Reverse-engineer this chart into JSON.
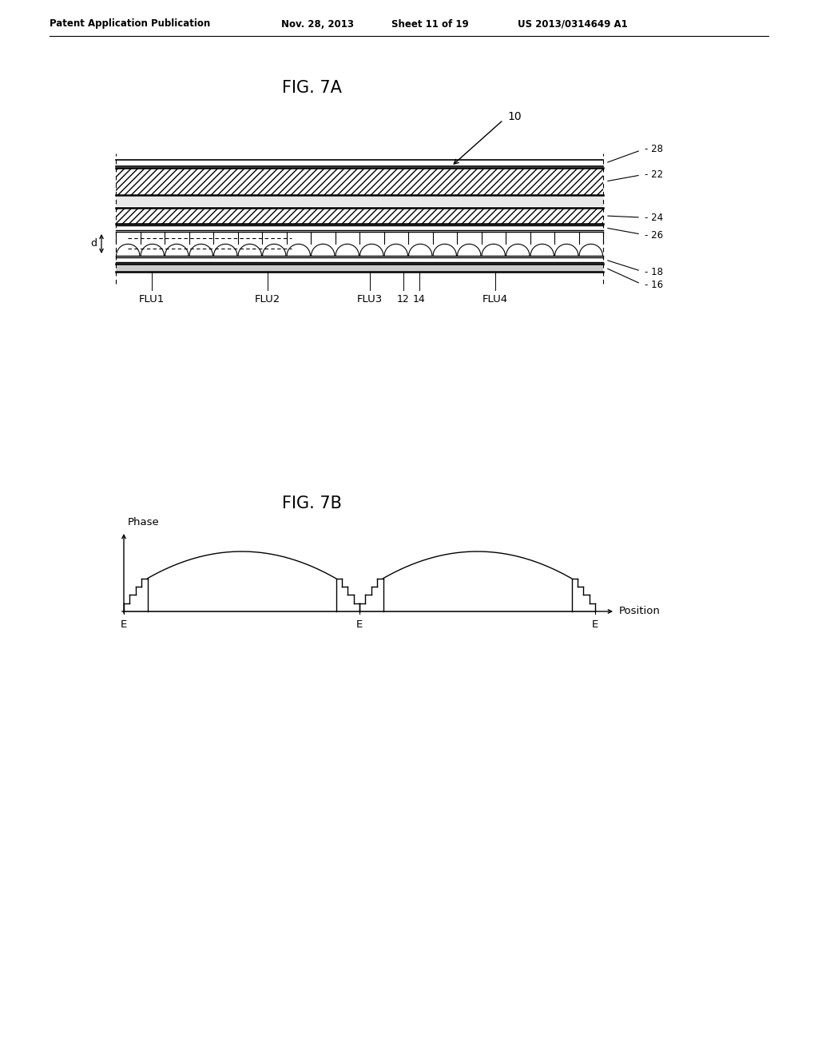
{
  "bg_color": "#ffffff",
  "header_text": "Patent Application Publication",
  "header_date": "Nov. 28, 2013",
  "header_sheet": "Sheet 11 of 19",
  "header_patent": "US 2013/0314649 A1",
  "fig7a_title": "FIG. 7A",
  "fig7b_title": "FIG. 7B",
  "label_10": "10",
  "label_28": "28",
  "label_22": "22",
  "label_24": "24",
  "label_26": "26",
  "label_18": "18",
  "label_16": "16",
  "label_12": "12",
  "label_14": "14",
  "label_d": "d",
  "flu_labels": [
    "FLU1",
    "FLU2",
    "FLU3",
    "FLU4"
  ],
  "phase_label": "Phase",
  "position_label": "Position",
  "line_color": "#000000"
}
